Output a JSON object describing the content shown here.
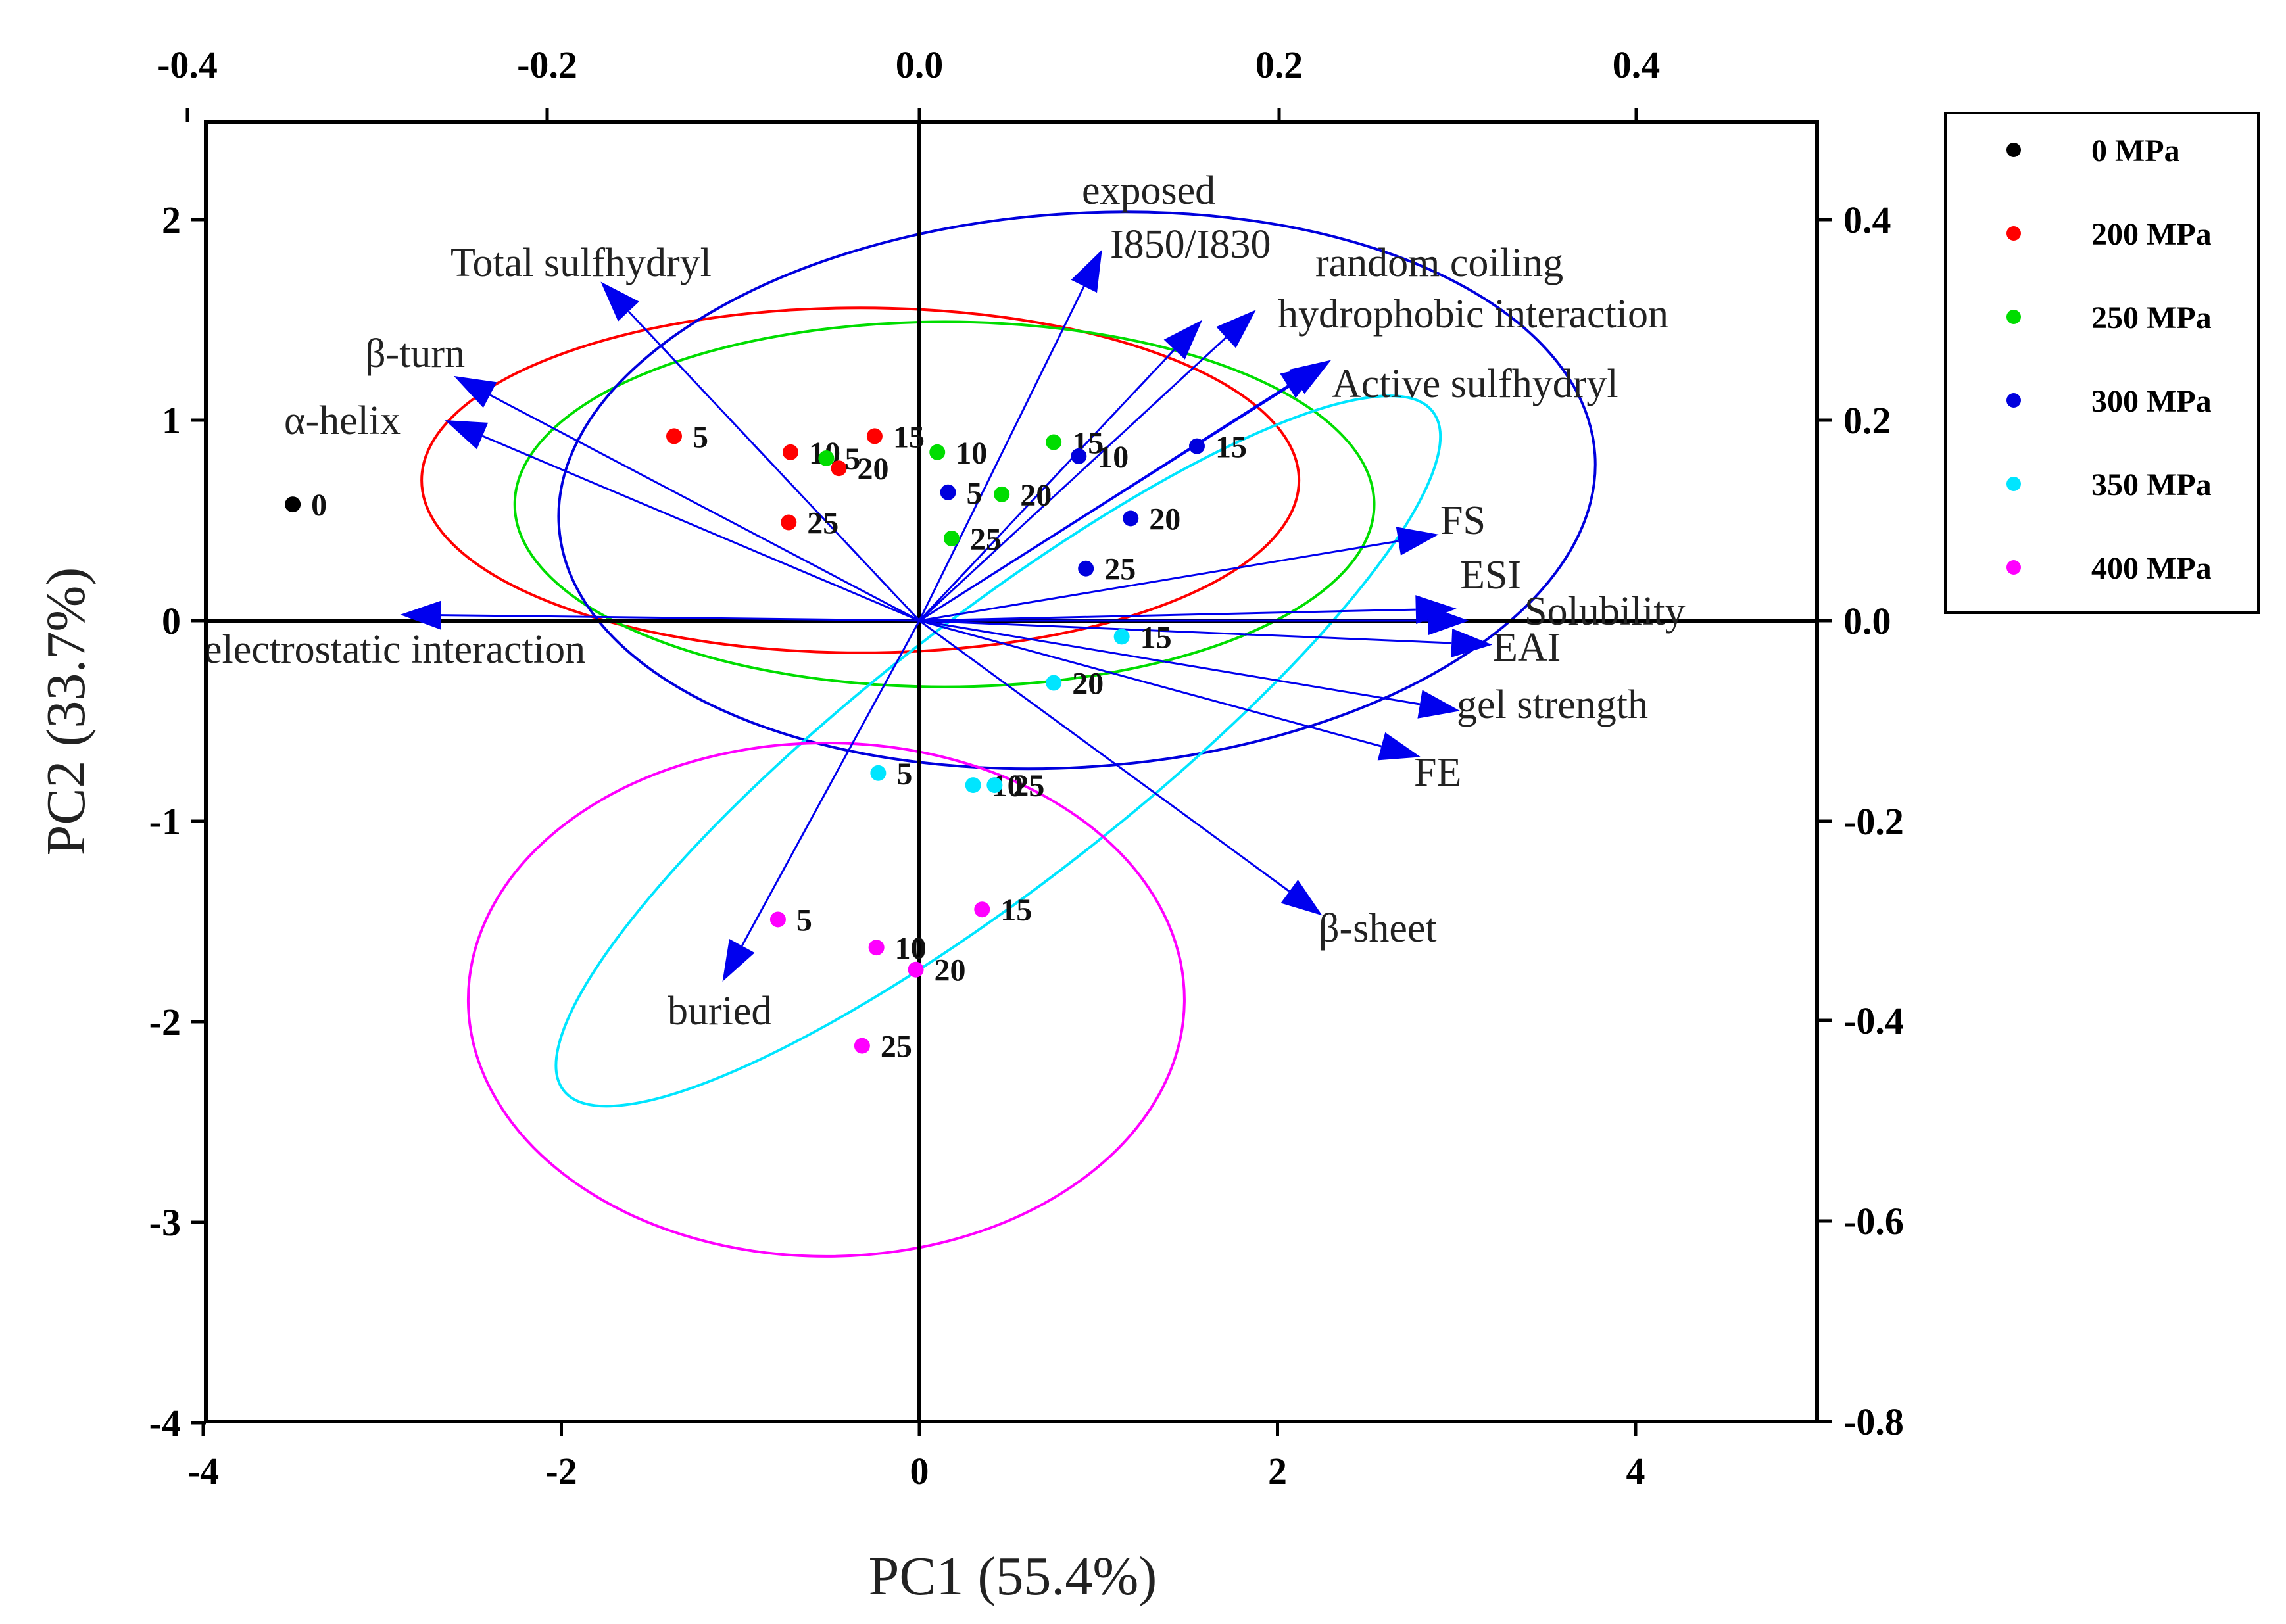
{
  "chart_data": {
    "type": "scatter",
    "subtype": "pca-biplot",
    "xlabel": "PC1 (55.4%)",
    "ylabel": "PC2 (33.7%)",
    "xlim": [
      -4,
      5
    ],
    "ylim": [
      -4,
      2.5
    ],
    "x_ticks": [
      -4,
      -2,
      0,
      2,
      4
    ],
    "y_ticks": [
      -4,
      -3,
      -2,
      -1,
      0,
      1,
      2
    ],
    "top_axis_ticks": [
      "-0.4",
      "-0.2",
      "0.0",
      "0.2",
      "0.4"
    ],
    "right_axis_ticks": [
      "-0.8",
      "-0.6",
      "-0.4",
      "-0.2",
      "0.0",
      "0.2",
      "0.4"
    ],
    "bottom_tick_labels": [
      "-4",
      "-2",
      "0",
      "2",
      "4"
    ],
    "left_tick_labels": [
      "-4",
      "-3",
      "-2",
      "-1",
      "0",
      "1",
      "2"
    ],
    "legend_position": "right",
    "series": [
      {
        "name": "0 MPa",
        "color": "#000000",
        "points": [
          {
            "x": -3.5,
            "y": 0.58,
            "label": "0"
          }
        ]
      },
      {
        "name": "200 MPa",
        "color": "#ff0000",
        "points": [
          {
            "x": -1.37,
            "y": 0.92,
            "label": "5"
          },
          {
            "x": -0.72,
            "y": 0.84,
            "label": "10"
          },
          {
            "x": -0.25,
            "y": 0.92,
            "label": "15"
          },
          {
            "x": -0.45,
            "y": 0.76,
            "label": "20"
          },
          {
            "x": -0.73,
            "y": 0.49,
            "label": "25"
          }
        ]
      },
      {
        "name": "250 MPa",
        "color": "#00dd00",
        "points": [
          {
            "x": -0.52,
            "y": 0.81,
            "label": "5"
          },
          {
            "x": 0.1,
            "y": 0.84,
            "label": "10"
          },
          {
            "x": 0.75,
            "y": 0.89,
            "label": "15"
          },
          {
            "x": 0.46,
            "y": 0.63,
            "label": "20"
          },
          {
            "x": 0.18,
            "y": 0.41,
            "label": "25"
          }
        ]
      },
      {
        "name": "300 MPa",
        "color": "#0000dd",
        "points": [
          {
            "x": 0.16,
            "y": 0.64,
            "label": "5"
          },
          {
            "x": 0.89,
            "y": 0.82,
            "label": "10"
          },
          {
            "x": 1.55,
            "y": 0.87,
            "label": "15"
          },
          {
            "x": 1.18,
            "y": 0.51,
            "label": "20"
          },
          {
            "x": 0.93,
            "y": 0.26,
            "label": "25"
          }
        ]
      },
      {
        "name": "350 MPa",
        "color": "#00e5ff",
        "points": [
          {
            "x": -0.23,
            "y": -0.76,
            "label": "5"
          },
          {
            "x": 0.3,
            "y": -0.82,
            "label": "10"
          },
          {
            "x": 1.13,
            "y": -0.08,
            "label": "15"
          },
          {
            "x": 0.75,
            "y": -0.31,
            "label": "20"
          },
          {
            "x": 0.42,
            "y": -0.82,
            "label": "25"
          }
        ]
      },
      {
        "name": "400 MPa",
        "color": "#ff00ff",
        "points": [
          {
            "x": -0.79,
            "y": -1.49,
            "label": "5"
          },
          {
            "x": -0.24,
            "y": -1.63,
            "label": "10"
          },
          {
            "x": 0.35,
            "y": -1.44,
            "label": "15"
          },
          {
            "x": -0.02,
            "y": -1.74,
            "label": "20"
          },
          {
            "x": -0.32,
            "y": -2.12,
            "label": "25"
          }
        ]
      }
    ],
    "confidence_ellipses": [
      {
        "series": "200 MPa",
        "color": "#ff0000",
        "center": [
          -0.33,
          0.7
        ],
        "semi_axes": [
          2.45,
          0.86
        ],
        "angle_deg": 0
      },
      {
        "series": "250 MPa",
        "color": "#00dd00",
        "center": [
          0.14,
          0.58
        ],
        "semi_axes": [
          2.4,
          0.91
        ],
        "angle_deg": 0
      },
      {
        "series": "300 MPa",
        "color": "#0000dd",
        "center": [
          0.88,
          0.65
        ],
        "semi_axes": [
          2.9,
          1.38
        ],
        "angle_deg": 4
      },
      {
        "series": "350 MPa",
        "color": "#00e5ff",
        "center": [
          0.44,
          -0.65
        ],
        "semi_axes": [
          3.08,
          0.66
        ],
        "angle_deg": 38
      },
      {
        "series": "400 MPa",
        "color": "#ff00ff",
        "center": [
          -0.52,
          -1.89
        ],
        "semi_axes": [
          2.0,
          1.28
        ],
        "angle_deg": 0
      }
    ],
    "loadings": [
      {
        "name": "exposed",
        "x": 1.02,
        "y": 1.85
      },
      {
        "name": "I850/I830",
        "x": 1.58,
        "y": 1.5
      },
      {
        "name": "random coiling",
        "x": 1.88,
        "y": 1.55
      },
      {
        "name": "hydrophobic interaction",
        "x": 2.25,
        "y": 1.28
      },
      {
        "name": "Active sulfhydryl",
        "x": 2.3,
        "y": 1.3
      },
      {
        "name": "Total sulfhydryl",
        "x": -1.78,
        "y": 1.69
      },
      {
        "name": "β-turn",
        "x": -2.6,
        "y": 1.22
      },
      {
        "name": "α-helix",
        "x": -2.65,
        "y": 1.0
      },
      {
        "name": "electrostatic interaction",
        "x": -2.9,
        "y": 0.03
      },
      {
        "name": "FS",
        "x": 2.9,
        "y": 0.43
      },
      {
        "name": "ESI",
        "x": 3.0,
        "y": 0.06
      },
      {
        "name": "Solubility",
        "x": 3.07,
        "y": 0.0
      },
      {
        "name": "EAI",
        "x": 3.2,
        "y": -0.12
      },
      {
        "name": "gel strength",
        "x": 3.02,
        "y": -0.45
      },
      {
        "name": "FE",
        "x": 2.8,
        "y": -0.68
      },
      {
        "name": "β-sheet",
        "x": 2.25,
        "y": -1.47
      },
      {
        "name": "buried",
        "x": -1.1,
        "y": -1.8
      }
    ],
    "loading_color": "#0000ee"
  }
}
